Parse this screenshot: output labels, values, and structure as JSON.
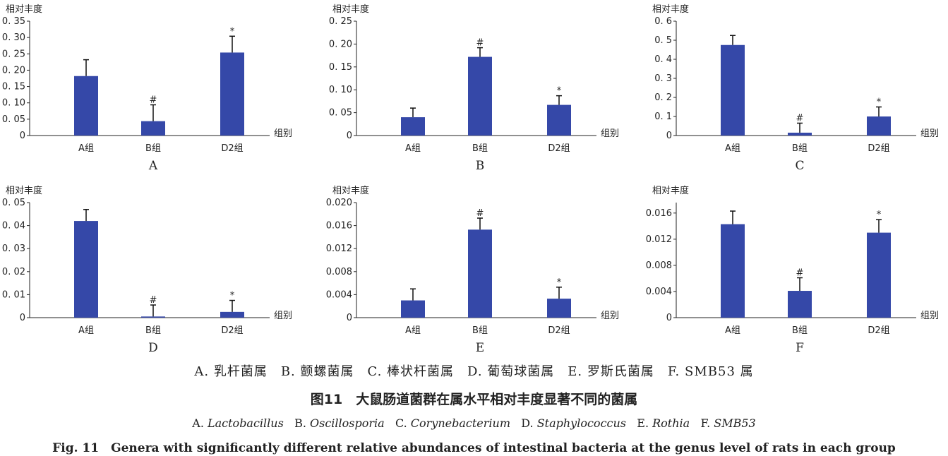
{
  "colors": {
    "bar": "#3548a8",
    "axis": "#222222",
    "error": "#111111"
  },
  "chart_data": [
    {
      "type": "bar",
      "panel": "A",
      "ylabel": "相对丰度",
      "xlabel": "组别",
      "categories": [
        "A组",
        "B组",
        "D2组"
      ],
      "values": [
        0.182,
        0.044,
        0.254
      ],
      "errors": [
        0.05,
        0.05,
        0.05
      ],
      "markers": [
        "",
        "#",
        "*"
      ],
      "ylim": [
        0,
        0.35
      ],
      "yticks": [
        0,
        0.05,
        0.1,
        0.15,
        0.2,
        0.25,
        0.3,
        0.35
      ],
      "ytick_labels": [
        "0",
        "0. 05",
        "0. 10",
        "0. 15",
        "0. 20",
        "0. 25",
        "0. 30",
        "0. 35"
      ]
    },
    {
      "type": "bar",
      "panel": "B",
      "ylabel": "相对丰度",
      "xlabel": "组别",
      "categories": [
        "A组",
        "B组",
        "D2组"
      ],
      "values": [
        0.04,
        0.172,
        0.067
      ],
      "errors": [
        0.02,
        0.02,
        0.02
      ],
      "markers": [
        "",
        "#",
        "*"
      ],
      "ylim": [
        0,
        0.25
      ],
      "yticks": [
        0,
        0.05,
        0.1,
        0.15,
        0.2,
        0.25
      ],
      "ytick_labels": [
        "0",
        "0. 05",
        "0. 10",
        "0. 15",
        "0. 20",
        "0. 25"
      ]
    },
    {
      "type": "bar",
      "panel": "C",
      "ylabel": "相对丰度",
      "xlabel": "组别",
      "categories": [
        "A组",
        "B组",
        "D2组"
      ],
      "values": [
        0.475,
        0.015,
        0.1
      ],
      "errors": [
        0.05,
        0.05,
        0.05
      ],
      "markers": [
        "",
        "#",
        "*"
      ],
      "ylim": [
        0,
        0.6
      ],
      "yticks": [
        0,
        0.1,
        0.2,
        0.3,
        0.4,
        0.5,
        0.6
      ],
      "ytick_labels": [
        "0",
        "0. 1",
        "0. 2",
        "0. 3",
        "0. 4",
        "0. 5",
        "0. 6"
      ]
    },
    {
      "type": "bar",
      "panel": "D",
      "ylabel": "相对丰度",
      "xlabel": "组别",
      "categories": [
        "A组",
        "B组",
        "D2组"
      ],
      "values": [
        0.042,
        0.0005,
        0.0025
      ],
      "errors": [
        0.005,
        0.005,
        0.005
      ],
      "markers": [
        "",
        "#",
        "*"
      ],
      "ylim": [
        0,
        0.05
      ],
      "yticks": [
        0,
        0.01,
        0.02,
        0.03,
        0.04,
        0.05
      ],
      "ytick_labels": [
        "0",
        "0. 01",
        "0. 02",
        "0. 03",
        "0. 04",
        "0. 05"
      ]
    },
    {
      "type": "bar",
      "panel": "E",
      "ylabel": "相对丰度",
      "xlabel": "组别",
      "categories": [
        "A组",
        "B组",
        "D2组"
      ],
      "values": [
        0.003,
        0.0153,
        0.0033
      ],
      "errors": [
        0.002,
        0.002,
        0.002
      ],
      "markers": [
        "",
        "#",
        "*"
      ],
      "ylim": [
        0,
        0.02
      ],
      "yticks": [
        0,
        0.004,
        0.008,
        0.012,
        0.016,
        0.02
      ],
      "ytick_labels": [
        "0",
        "0.004",
        "0.008",
        "0.012",
        "0.016",
        "0.020"
      ]
    },
    {
      "type": "bar",
      "panel": "F",
      "ylabel": "相对丰度",
      "xlabel": "组别",
      "categories": [
        "A组",
        "B组",
        "D2组"
      ],
      "values": [
        0.0143,
        0.0041,
        0.013
      ],
      "errors": [
        0.002,
        0.002,
        0.002
      ],
      "markers": [
        "",
        "#",
        "*"
      ],
      "ylim": [
        0,
        0.0176
      ],
      "yticks": [
        0,
        0.004,
        0.008,
        0.012,
        0.016
      ],
      "ytick_labels": [
        "0",
        "0.004",
        "0.008",
        "0.012",
        "0.016"
      ]
    }
  ],
  "captions": {
    "legend_cn": "A. 乳杆菌属　B. 颤螺菌属　C. 棒状杆菌属　D. 葡萄球菌属　E. 罗斯氏菌属　F. SMB53 属",
    "title_cn": "图11　大鼠肠道菌群在属水平相对丰度显著不同的菌属",
    "latin": {
      "a_prefix": "A. ",
      "a_name": "Lactobacillus",
      "b_prefix": "B. ",
      "b_name": "Oscillosporia",
      "c_prefix": "C. ",
      "c_name": "Corynebacterium",
      "d_prefix": "D. ",
      "d_name": "Staphylococcus",
      "e_prefix": "E. ",
      "e_name": "Rothia",
      "f_prefix": "F. ",
      "f_name": "SMB53"
    },
    "title_en": "Fig. 11　Genera with significantly different relative abundances of intestinal bacteria at the genus level of rats in each group"
  }
}
